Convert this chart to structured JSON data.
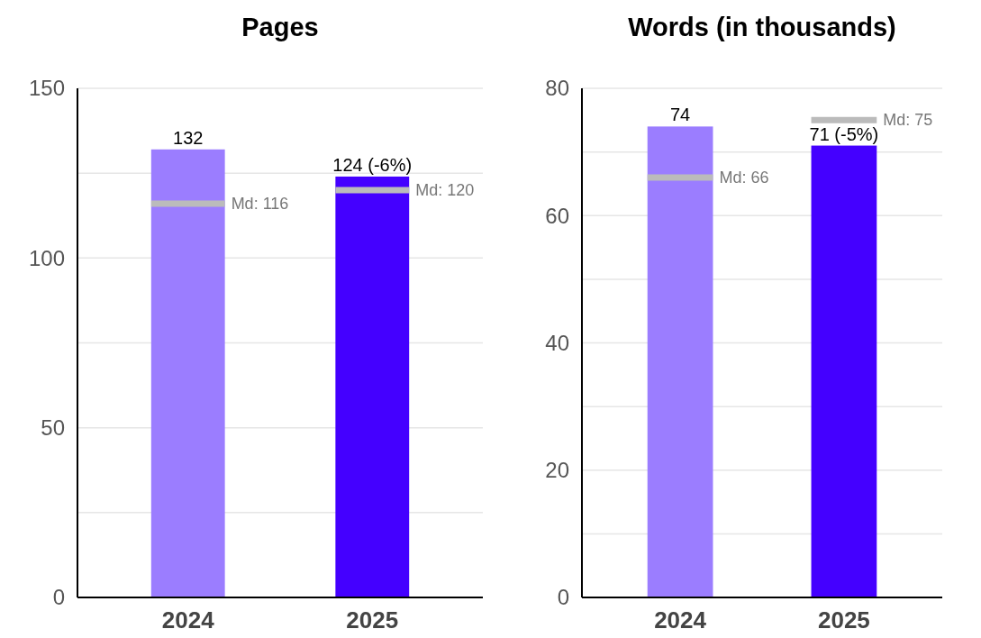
{
  "chart_data": [
    {
      "type": "bar",
      "title": "Pages",
      "categories": [
        "2024",
        "2025"
      ],
      "series": [
        {
          "type": "bar",
          "colors": [
            "#9b7dff",
            "#4400ff"
          ],
          "values": [
            132,
            124
          ],
          "value_labels": [
            "132",
            "124 (-6%)"
          ]
        }
      ],
      "ref_lines": [
        {
          "axis": "y",
          "value": 116,
          "label": "Md: 116",
          "color": "#bbbbbb"
        },
        {
          "axis": "y",
          "value": 120,
          "label": "Md: 120",
          "color": "#bbbbbb"
        }
      ],
      "ylim": [
        0,
        150
      ],
      "yticks": [
        0,
        {
          "value": 25,
          "label": null
        },
        50,
        {
          "value": 75,
          "label": null
        },
        100,
        {
          "value": 125,
          "label": null
        },
        150
      ],
      "grid": "y"
    },
    {
      "type": "bar",
      "title": "Words (in thousands)",
      "categories": [
        "2024",
        "2025"
      ],
      "series": [
        {
          "type": "bar",
          "colors": [
            "#9b7dff",
            "#4400ff"
          ],
          "values": [
            74,
            71
          ],
          "value_labels": [
            "74",
            "71 (-5%)"
          ]
        }
      ],
      "ref_lines": [
        {
          "axis": "y",
          "value": 66,
          "label": "Md: 66",
          "color": "#bbbbbb"
        },
        {
          "axis": "y",
          "value": 75,
          "label": "Md: 75",
          "color": "#bbbbbb"
        }
      ],
      "ylim": [
        0,
        80
      ],
      "yticks": [
        0,
        {
          "value": 10,
          "label": null
        },
        20,
        {
          "value": 30,
          "label": null
        },
        40,
        {
          "value": 50,
          "label": null
        },
        60,
        {
          "value": 70,
          "label": null
        },
        80
      ],
      "grid": "y"
    }
  ]
}
